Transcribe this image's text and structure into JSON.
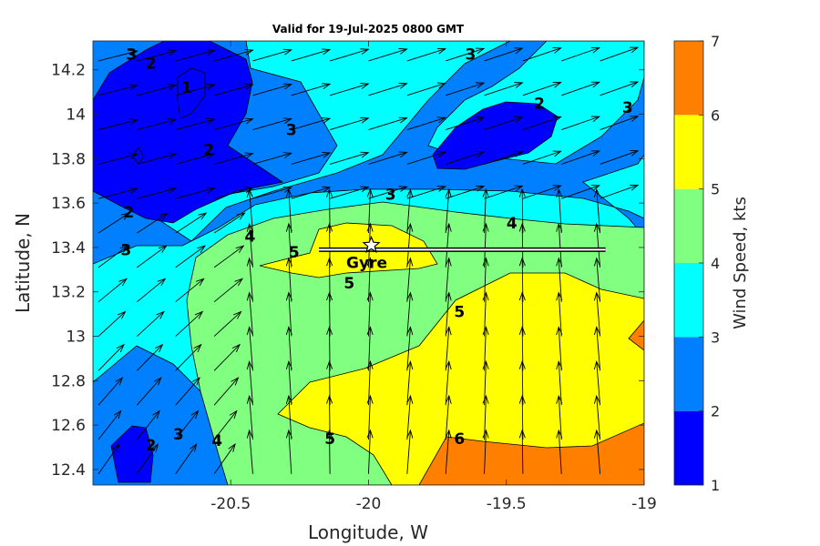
{
  "chart_data": {
    "type": "contour",
    "title": "Valid for 19-Jul-2025 0800 GMT",
    "xlabel": "Longitude, W",
    "ylabel": "Latitude, N",
    "xlim": [
      -21.0,
      -19.0
    ],
    "ylim": [
      12.33,
      14.33
    ],
    "xticks": [
      -20.5,
      -20,
      -19.5,
      -19
    ],
    "xtick_labels": [
      "-20.5",
      "-20",
      "-19.5",
      "-19"
    ],
    "yticks": [
      12.4,
      12.6,
      12.8,
      13.0,
      13.2,
      13.4,
      13.6,
      13.8,
      14.0,
      14.2
    ],
    "ytick_labels": [
      "12.4",
      "12.6",
      "12.8",
      "13",
      "13.2",
      "13.4",
      "13.6",
      "13.8",
      "14",
      "14.2"
    ],
    "colorbar": {
      "label": "Wind Speed, kts",
      "levels": [
        1,
        2,
        3,
        4,
        5,
        6,
        7
      ],
      "tick_labels": [
        "1",
        "2",
        "3",
        "4",
        "5",
        "6",
        "7"
      ],
      "colors": [
        "#0000ff",
        "#0080ff",
        "#00ffff",
        "#80ff80",
        "#ffff00",
        "#ff8000"
      ]
    },
    "contour_labels": [
      {
        "text": "3",
        "lon": -20.86,
        "lat": 14.27
      },
      {
        "text": "2",
        "lon": -20.79,
        "lat": 14.23
      },
      {
        "text": "1",
        "lon": -20.66,
        "lat": 14.12
      },
      {
        "text": "2",
        "lon": -20.58,
        "lat": 13.84
      },
      {
        "text": "3",
        "lon": -20.28,
        "lat": 13.93
      },
      {
        "text": "3",
        "lon": -19.63,
        "lat": 14.27
      },
      {
        "text": "2",
        "lon": -19.38,
        "lat": 14.05
      },
      {
        "text": "3",
        "lon": -19.06,
        "lat": 14.03
      },
      {
        "text": "2",
        "lon": -20.87,
        "lat": 13.56
      },
      {
        "text": "3",
        "lon": -20.88,
        "lat": 13.39
      },
      {
        "text": "4",
        "lon": -20.43,
        "lat": 13.45
      },
      {
        "text": "3",
        "lon": -19.92,
        "lat": 13.64
      },
      {
        "text": "4",
        "lon": -19.48,
        "lat": 13.51
      },
      {
        "text": "5",
        "lon": -20.27,
        "lat": 13.38
      },
      {
        "text": "5",
        "lon": -20.07,
        "lat": 13.24
      },
      {
        "text": "5",
        "lon": -19.67,
        "lat": 13.11
      },
      {
        "text": "5",
        "lon": -20.14,
        "lat": 12.54
      },
      {
        "text": "6",
        "lon": -19.67,
        "lat": 12.54
      },
      {
        "text": "4",
        "lon": -20.55,
        "lat": 12.53
      },
      {
        "text": "3",
        "lon": -20.69,
        "lat": 12.56
      },
      {
        "text": "2",
        "lon": -20.79,
        "lat": 12.51
      }
    ],
    "track": {
      "label": "Gyre",
      "points": [
        [
          -20.18,
          13.39
        ],
        [
          -19.14,
          13.39
        ]
      ],
      "marker": {
        "lon": -19.99,
        "lat": 13.41
      }
    },
    "wind_field": "u,v arrows on a regular grid, flow mostly from the south in the south-centre and from the southwest in the north and west"
  }
}
